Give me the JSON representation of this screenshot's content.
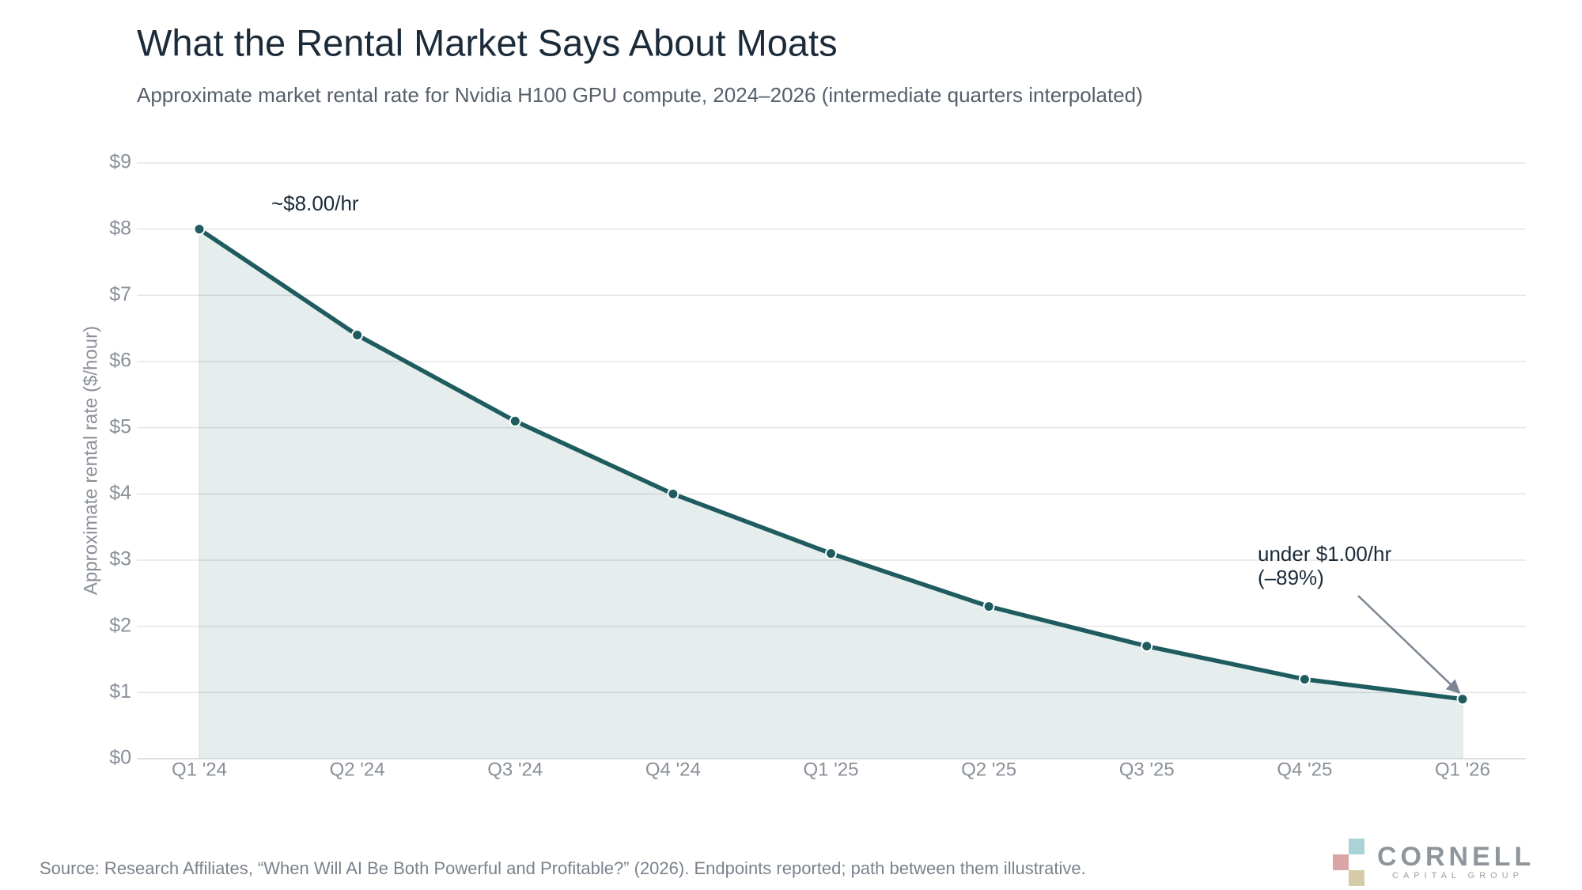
{
  "chart_data": {
    "type": "line",
    "title": "What the Rental Market Says About Moats",
    "subtitle": "Approximate market rental rate for Nvidia H100 GPU compute, 2024–2026 (intermediate quarters interpolated)",
    "y_label": "Approximate rental rate ($/hour)",
    "categories": [
      "Q1 '24",
      "Q2 '24",
      "Q3 '24",
      "Q4 '24",
      "Q1 '25",
      "Q2 '25",
      "Q3 '25",
      "Q4 '25",
      "Q1 '26"
    ],
    "values": [
      8,
      6.4,
      5.1,
      4.0,
      3.1,
      2.3,
      1.7,
      1.2,
      0.9
    ],
    "color": "#1f5c5f",
    "area": true,
    "ylim": [
      0,
      9
    ],
    "yticks": [
      {
        "value": 0,
        "label": "$0"
      },
      {
        "value": 1,
        "label": "$1"
      },
      {
        "value": 2,
        "label": "$2"
      },
      {
        "value": 3,
        "label": "$3"
      },
      {
        "value": 4,
        "label": "$4"
      },
      {
        "value": 5,
        "label": "$5"
      },
      {
        "value": 6,
        "label": "$6"
      },
      {
        "value": 7,
        "label": "$7"
      },
      {
        "value": 8,
        "label": "$8"
      },
      {
        "value": 9,
        "label": "$9"
      }
    ],
    "grid": true,
    "annotations": [
      {
        "lines": [
          "~$8.00/hr"
        ]
      },
      {
        "lines": [
          "under $1.00/hr",
          "(–89%)"
        ]
      }
    ],
    "source": "Source: Research Affiliates, “When Will AI Be Both Powerful and Profitable?” (2026). Endpoints reported; path between them illustrative."
  },
  "logo": {
    "name": "CORNELL",
    "tagline": "CAPITAL GROUP"
  }
}
